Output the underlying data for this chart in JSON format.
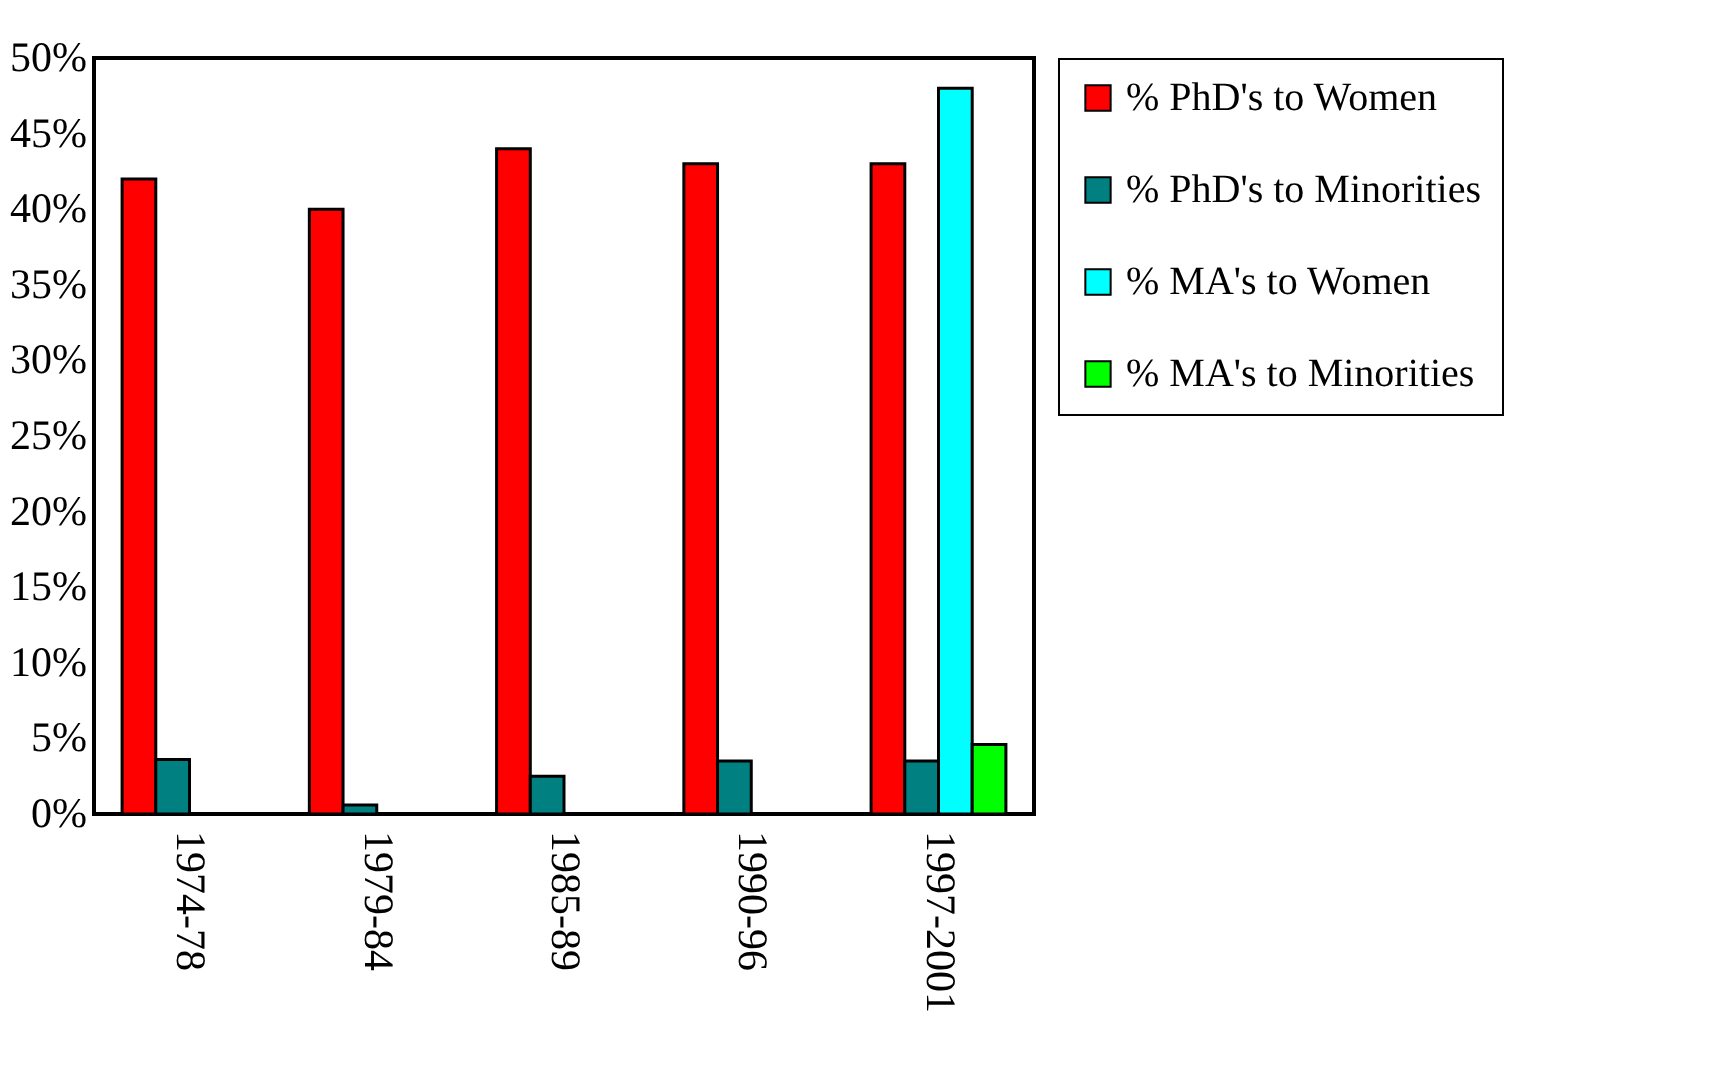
{
  "chart_data": {
    "type": "bar",
    "categories": [
      "1974-78",
      "1979-84",
      "1985-89",
      "1990-96",
      "1997-2001"
    ],
    "series": [
      {
        "name": "% PhD's to Women",
        "color": "#ff0000",
        "values": [
          42,
          40,
          44,
          43,
          43
        ]
      },
      {
        "name": "% PhD's to Minorities",
        "color": "#008080",
        "values": [
          3.6,
          0.6,
          2.5,
          3.5,
          3.5
        ]
      },
      {
        "name": "% MA's to Women",
        "color": "#00ffff",
        "values": [
          null,
          null,
          null,
          null,
          48
        ]
      },
      {
        "name": "% MA's to Minorities",
        "color": "#00ff00",
        "values": [
          null,
          null,
          null,
          null,
          4.6
        ]
      }
    ],
    "ylim": [
      0,
      50
    ],
    "yticks": [
      {
        "value": 0,
        "label": "0%"
      },
      {
        "value": 5,
        "label": "5%"
      },
      {
        "value": 10,
        "label": "10%"
      },
      {
        "value": 15,
        "label": "15%"
      },
      {
        "value": 20,
        "label": "20%"
      },
      {
        "value": 25,
        "label": "25%"
      },
      {
        "value": 30,
        "label": "30%"
      },
      {
        "value": 35,
        "label": "35%"
      },
      {
        "value": 40,
        "label": "40%"
      },
      {
        "value": 45,
        "label": "45%"
      },
      {
        "value": 50,
        "label": "50%"
      }
    ],
    "grid": false,
    "legend": "right"
  }
}
